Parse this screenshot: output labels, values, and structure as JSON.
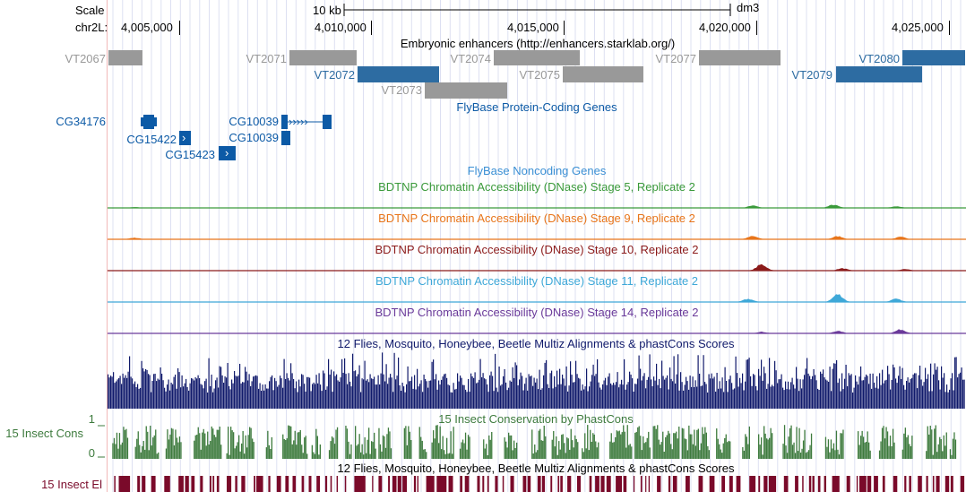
{
  "scale": {
    "label": "Scale",
    "bar_label": "10 kb",
    "assembly": "dm3"
  },
  "ruler": {
    "chrom_label": "chr2L:",
    "ticks": [
      "4,005,000",
      "4,010,000",
      "4,015,000",
      "4,020,000",
      "4,025,000"
    ]
  },
  "tracks": {
    "enhancers": {
      "title": "Embryonic enhancers (http://enhancers.starklab.org/)",
      "items": [
        {
          "name": "VT2067",
          "color": "#999999"
        },
        {
          "name": "VT2071",
          "color": "#999999"
        },
        {
          "name": "VT2072",
          "color": "#2d6ca2"
        },
        {
          "name": "VT2073",
          "color": "#999999"
        },
        {
          "name": "VT2074",
          "color": "#999999"
        },
        {
          "name": "VT2075",
          "color": "#999999"
        },
        {
          "name": "VT2077",
          "color": "#999999"
        },
        {
          "name": "VT2079",
          "color": "#2d6ca2"
        },
        {
          "name": "VT2080",
          "color": "#2d6ca2"
        }
      ]
    },
    "protein_coding": {
      "title": "FlyBase Protein-Coding Genes",
      "color": "#0c5aa6",
      "genes": [
        "CG34176",
        "CG15422",
        "CG15423",
        "CG10039",
        "CG10039"
      ]
    },
    "noncoding": {
      "title": "FlyBase Noncoding Genes",
      "color": "#3a8fd4"
    },
    "dnase": [
      {
        "title": "BDTNP Chromatin Accessibility (DNase) Stage 5, Replicate 2",
        "color": "#3a9a3a"
      },
      {
        "title": "BDTNP Chromatin Accessibility (DNase) Stage 9, Replicate 2",
        "color": "#e8751a"
      },
      {
        "title": "BDTNP Chromatin Accessibility (DNase) Stage 10, Replicate 2",
        "color": "#8b1a1a"
      },
      {
        "title": "BDTNP Chromatin Accessibility (DNase) Stage 11, Replicate 2",
        "color": "#3ea8d8"
      },
      {
        "title": "BDTNP Chromatin Accessibility (DNase) Stage 14, Replicate 2",
        "color": "#6a3a9a"
      }
    ],
    "multiz": {
      "title": "12 Flies, Mosquito, Honeybee, Beetle Multiz Alignments & phastCons Scores",
      "color": "#101a6b"
    },
    "insect_cons": {
      "title": "15 Insect Conservation by PhastCons",
      "side_label": "15 Insect Cons",
      "ymax": "1",
      "ymin": "0",
      "color": "#3e7b3e"
    },
    "insect_el": {
      "title": "12 Flies, Mosquito, Honeybee, Beetle Multiz Alignments & phastCons Scores",
      "side_label": "15 Insect El",
      "color": "#7a0a2a"
    }
  }
}
